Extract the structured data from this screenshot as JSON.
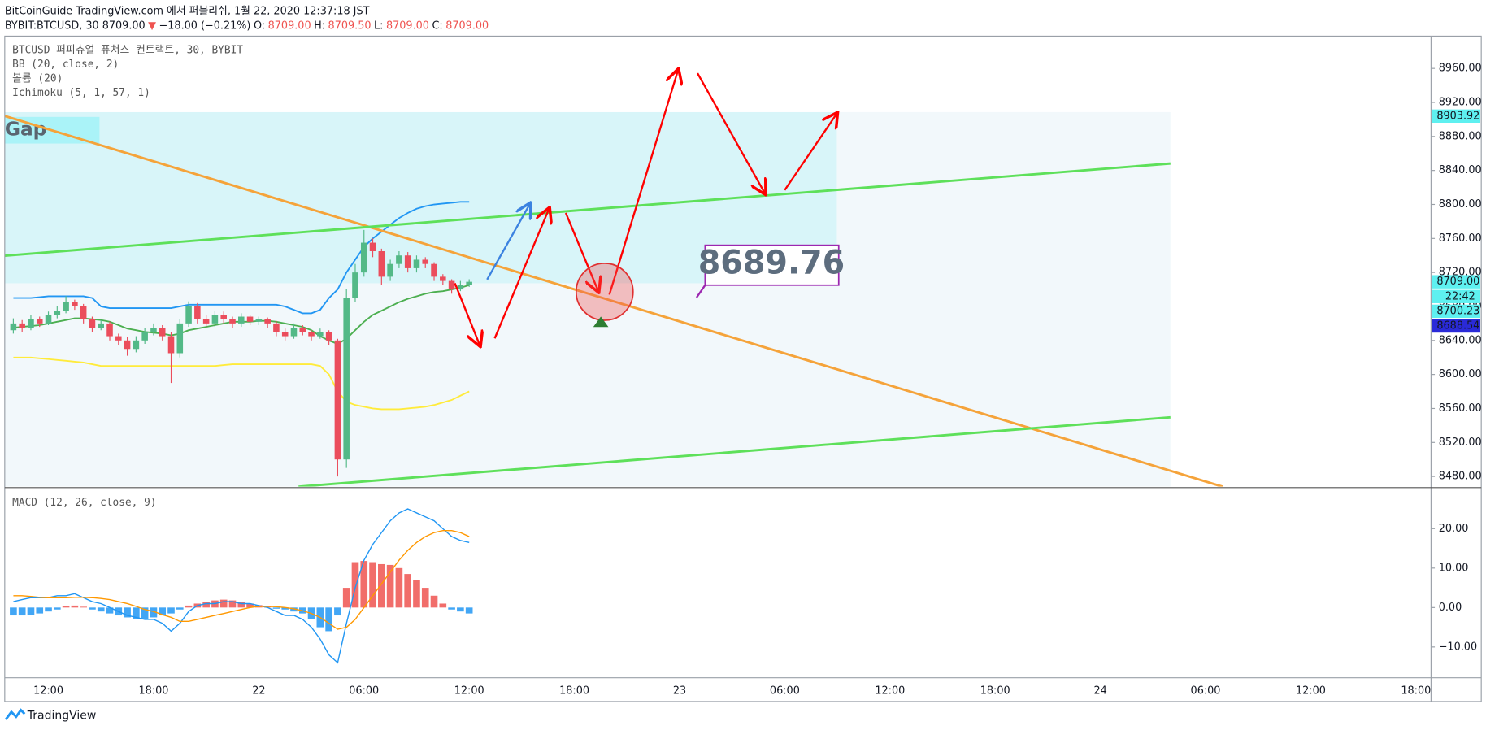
{
  "header": {
    "published": "BitCoinGuide TradingView.com 에서 퍼블리쉬, 1월 22, 2020 12:37:18 JST",
    "quote": [
      {
        "text": "BYBIT:BTCUSD, 30 8709.00",
        "color": "#131722"
      },
      {
        "text": "▼",
        "color": "#ef5350"
      },
      {
        "text": "−18.00 (−0.21%)",
        "color": "#131722"
      },
      {
        "text": "O:",
        "color": "#131722"
      },
      {
        "text": "8709.00",
        "color": "#ef5350"
      },
      {
        "text": "H:",
        "color": "#131722"
      },
      {
        "text": "8709.50",
        "color": "#ef5350"
      },
      {
        "text": "L:",
        "color": "#131722"
      },
      {
        "text": "8709.00",
        "color": "#ef5350"
      },
      {
        "text": "C:",
        "color": "#131722"
      },
      {
        "text": "8709.00",
        "color": "#ef5350"
      }
    ]
  },
  "footer": {
    "brand": "TradingView"
  },
  "chart_data": [
    {
      "type": "candlestick",
      "legend": [
        "BTCUSD 퍼피츄얼 퓨쳐스 컨트랙트, 30, BYBIT",
        "BB (20, close, 2)",
        "볼륨 (20)",
        "Ichimoku (5, 1, 57, 1)"
      ],
      "annotations": [
        "Gap",
        "8689.76"
      ],
      "up_color": "#53b987",
      "down_color": "#eb4d5c",
      "x": [
        -14,
        -13.5,
        -13,
        -12.5,
        -12,
        -11.5,
        -11,
        -10.5,
        -10,
        -9.5,
        -9,
        -8.5,
        -8,
        -7.5,
        -7,
        -6.5,
        -6,
        -5.5,
        -5,
        -4.5,
        -4,
        -3.5,
        -3,
        -2.5,
        -2,
        -1.5,
        -1,
        -0.5,
        0,
        0.5,
        1,
        1.5,
        2,
        2.5,
        3,
        3.5,
        4,
        4.5,
        5,
        5.5,
        6,
        6.5,
        7,
        7.5,
        8,
        8.5,
        9,
        9.5,
        10,
        10.5,
        11,
        11.5,
        12
      ],
      "ohlc": [
        [
          8652,
          8666,
          8648,
          8660
        ],
        [
          8660,
          8664,
          8650,
          8655
        ],
        [
          8655,
          8670,
          8652,
          8665
        ],
        [
          8665,
          8668,
          8656,
          8660
        ],
        [
          8660,
          8674,
          8658,
          8670
        ],
        [
          8670,
          8680,
          8666,
          8675
        ],
        [
          8675,
          8692,
          8672,
          8685
        ],
        [
          8685,
          8688,
          8676,
          8680
        ],
        [
          8680,
          8683,
          8660,
          8665
        ],
        [
          8665,
          8668,
          8650,
          8655
        ],
        [
          8655,
          8664,
          8652,
          8660
        ],
        [
          8660,
          8662,
          8640,
          8645
        ],
        [
          8645,
          8648,
          8635,
          8640
        ],
        [
          8640,
          8644,
          8622,
          8630
        ],
        [
          8630,
          8645,
          8626,
          8640
        ],
        [
          8640,
          8655,
          8636,
          8650
        ],
        [
          8650,
          8660,
          8646,
          8655
        ],
        [
          8655,
          8658,
          8640,
          8645
        ],
        [
          8645,
          8650,
          8590,
          8625
        ],
        [
          8625,
          8665,
          8620,
          8660
        ],
        [
          8660,
          8686,
          8656,
          8680
        ],
        [
          8680,
          8684,
          8660,
          8665
        ],
        [
          8665,
          8670,
          8656,
          8660
        ],
        [
          8660,
          8675,
          8656,
          8670
        ],
        [
          8670,
          8674,
          8660,
          8665
        ],
        [
          8665,
          8668,
          8655,
          8660
        ],
        [
          8660,
          8672,
          8656,
          8668
        ],
        [
          8668,
          8670,
          8658,
          8662
        ],
        [
          8662,
          8668,
          8658,
          8665
        ],
        [
          8665,
          8667,
          8655,
          8660
        ],
        [
          8660,
          8663,
          8645,
          8650
        ],
        [
          8650,
          8654,
          8640,
          8645
        ],
        [
          8645,
          8660,
          8642,
          8655
        ],
        [
          8655,
          8658,
          8646,
          8650
        ],
        [
          8650,
          8652,
          8640,
          8645
        ],
        [
          8645,
          8654,
          8642,
          8650
        ],
        [
          8650,
          8652,
          8635,
          8640
        ],
        [
          8640,
          8642,
          8480,
          8500
        ],
        [
          8500,
          8700,
          8490,
          8690
        ],
        [
          8690,
          8730,
          8685,
          8720
        ],
        [
          8720,
          8770,
          8715,
          8755
        ],
        [
          8755,
          8760,
          8738,
          8745
        ],
        [
          8745,
          8748,
          8705,
          8715
        ],
        [
          8715,
          8735,
          8710,
          8730
        ],
        [
          8730,
          8745,
          8725,
          8740
        ],
        [
          8740,
          8744,
          8720,
          8725
        ],
        [
          8725,
          8740,
          8720,
          8735
        ],
        [
          8735,
          8738,
          8725,
          8730
        ],
        [
          8730,
          8732,
          8710,
          8715
        ],
        [
          8715,
          8718,
          8705,
          8710
        ],
        [
          8710,
          8712,
          8695,
          8700
        ],
        [
          8700,
          8710,
          8698,
          8705
        ],
        [
          8705,
          8712,
          8703,
          8709
        ]
      ],
      "overlays": [
        {
          "color": "#2196f3",
          "values": [
            8690,
            8690,
            8690,
            8691,
            8692,
            8692,
            8692,
            8692,
            8692,
            8690,
            8680,
            8678,
            8678,
            8678,
            8678,
            8678,
            8678,
            8678,
            8678,
            8680,
            8682,
            8682,
            8682,
            8682,
            8682,
            8682,
            8682,
            8682,
            8682,
            8682,
            8682,
            8680,
            8676,
            8672,
            8672,
            8676,
            8690,
            8700,
            8720,
            8735,
            8750,
            8760,
            8768,
            8776,
            8784,
            8790,
            8795,
            8798,
            8800,
            8801,
            8802,
            8803,
            8803
          ]
        },
        {
          "color": "#4caf50",
          "values": [
            8655,
            8656,
            8657,
            8658,
            8660,
            8662,
            8664,
            8666,
            8666,
            8665,
            8664,
            8662,
            8658,
            8654,
            8652,
            8650,
            8649,
            8648,
            8646,
            8648,
            8652,
            8654,
            8656,
            8658,
            8660,
            8662,
            8662,
            8662,
            8663,
            8663,
            8662,
            8660,
            8658,
            8656,
            8652,
            8645,
            8640,
            8636,
            8642,
            8652,
            8662,
            8670,
            8675,
            8680,
            8685,
            8689,
            8692,
            8695,
            8697,
            8698,
            8700,
            8702,
            8705
          ]
        },
        {
          "color": "#ffeb3b",
          "values": [
            8620,
            8620,
            8620,
            8619,
            8618,
            8617,
            8616,
            8615,
            8614,
            8612,
            8610,
            8610,
            8610,
            8610,
            8610,
            8610,
            8610,
            8610,
            8610,
            8610,
            8610,
            8610,
            8610,
            8610,
            8611,
            8612,
            8612,
            8612,
            8612,
            8612,
            8612,
            8612,
            8612,
            8612,
            8612,
            8610,
            8600,
            8580,
            8568,
            8564,
            8562,
            8560,
            8559,
            8559,
            8559,
            8560,
            8561,
            8562,
            8564,
            8567,
            8570,
            8575,
            8580
          ]
        }
      ],
      "xlim": [
        -14.49,
        66.86
      ],
      "xticks": [
        {
          "value": -12,
          "label": "12:00"
        },
        {
          "value": -6,
          "label": "18:00"
        },
        {
          "value": 0,
          "label": "22"
        },
        {
          "value": 6,
          "label": "06:00"
        },
        {
          "value": 12,
          "label": "12:00"
        },
        {
          "value": 18,
          "label": "18:00"
        },
        {
          "value": 24,
          "label": "23"
        },
        {
          "value": 30,
          "label": "06:00"
        },
        {
          "value": 36,
          "label": "12:00"
        },
        {
          "value": 42,
          "label": "18:00"
        },
        {
          "value": 48,
          "label": "24"
        },
        {
          "value": 54,
          "label": "06:00"
        },
        {
          "value": 60,
          "label": "12:00"
        },
        {
          "value": 66,
          "label": "18:00"
        }
      ],
      "ylim": [
        8468,
        8998
      ],
      "yticks": [
        {
          "value": 8480,
          "label": "8480.00"
        },
        {
          "value": 8520,
          "label": "8520.00"
        },
        {
          "value": 8560,
          "label": "8560.00"
        },
        {
          "value": 8600,
          "label": "8600.00"
        },
        {
          "value": 8640,
          "label": "8640.00"
        },
        {
          "value": 8680,
          "label": "8680.00"
        },
        {
          "value": 8720,
          "label": "8720.00"
        },
        {
          "value": 8760,
          "label": "8760.00"
        },
        {
          "value": 8800,
          "label": "8800.00"
        },
        {
          "value": 8840,
          "label": "8840.00"
        },
        {
          "value": 8880,
          "label": "8880.00"
        },
        {
          "value": 8920,
          "label": "8920.00"
        },
        {
          "value": 8960,
          "label": "8960.00"
        }
      ],
      "grid": true,
      "price_tags": [
        {
          "value": 8903.92,
          "label": "8903.92",
          "bg": "#5ef0f0",
          "fg": "#131722",
          "line": "#40e0e8",
          "dash": false
        },
        {
          "value": 8709.0,
          "label": "8709.00",
          "countdown": "22:42",
          "bg": "#5ef0f0",
          "fg": "#131722",
          "line": "#40c8d0",
          "dash": true
        },
        {
          "value": 8700.23,
          "label": "8700.23",
          "bg": "#5ef0f0",
          "fg": "#131722",
          "line": "#40e0e8",
          "dash": false
        },
        {
          "value": 8688.54,
          "label": "8688.54",
          "bg": "#2a2ad8",
          "fg": "#ffffff",
          "line": "#3c3ce0",
          "dash": false
        }
      ]
    },
    {
      "type": "macd",
      "legend": [
        "MACD (12, 26, close, 9)"
      ],
      "ylim": [
        -17.8,
        30.4
      ],
      "yticks": [
        {
          "value": -10,
          "label": "−10.00"
        },
        {
          "value": 0,
          "label": "0.00"
        },
        {
          "value": 10,
          "label": "10.00"
        },
        {
          "value": 20,
          "label": "20.00"
        }
      ],
      "grid": true,
      "histogram": {
        "up_color": "#ef5350",
        "down_color": "#2196f3",
        "values": [
          -2,
          -2,
          -1.8,
          -1.5,
          -1,
          -0.5,
          0.3,
          0.5,
          0.2,
          -0.5,
          -1,
          -1.5,
          -2,
          -2.5,
          -3,
          -3,
          -2.5,
          -2,
          -1.5,
          -0.5,
          0.5,
          1,
          1.5,
          1.8,
          2,
          1.8,
          1.5,
          1,
          0.6,
          0.2,
          -0.3,
          -0.5,
          -1,
          -1.5,
          -3,
          -5,
          -6,
          -2,
          5,
          11.5,
          11.8,
          11.5,
          11,
          10.8,
          10,
          8.5,
          7,
          5,
          3,
          1,
          -0.5,
          -1,
          -1.5
        ]
      },
      "series": [
        {
          "color": "#2196f3",
          "values": [
            1.5,
            2,
            2.5,
            2.5,
            2.5,
            3,
            3,
            3.5,
            2.5,
            1.5,
            1,
            0,
            -1,
            -2,
            -2.5,
            -3,
            -3,
            -4,
            -6,
            -4,
            -1,
            0.5,
            1,
            1,
            1.5,
            1.5,
            1,
            1,
            0.5,
            0,
            -1,
            -2,
            -2,
            -3,
            -5,
            -8,
            -12,
            -14,
            -4,
            5,
            12,
            16,
            19,
            22,
            24,
            25,
            24,
            23,
            22,
            20,
            18,
            17,
            16.5
          ]
        },
        {
          "color": "#ff9800",
          "values": [
            3,
            3,
            2.8,
            2.6,
            2.5,
            2.5,
            2.5,
            2.6,
            2.6,
            2.5,
            2.3,
            2,
            1.5,
            1,
            0.3,
            -0.5,
            -1,
            -1.8,
            -2.5,
            -3.5,
            -3.5,
            -3,
            -2.5,
            -2,
            -1.5,
            -1,
            -0.5,
            0,
            0.3,
            0.3,
            0.2,
            0,
            -0.3,
            -0.8,
            -1.5,
            -2.5,
            -4,
            -5.5,
            -5,
            -3,
            0,
            3,
            6,
            9,
            12,
            14.5,
            16.5,
            18,
            19,
            19.5,
            19.5,
            19,
            18
          ]
        }
      ]
    }
  ]
}
